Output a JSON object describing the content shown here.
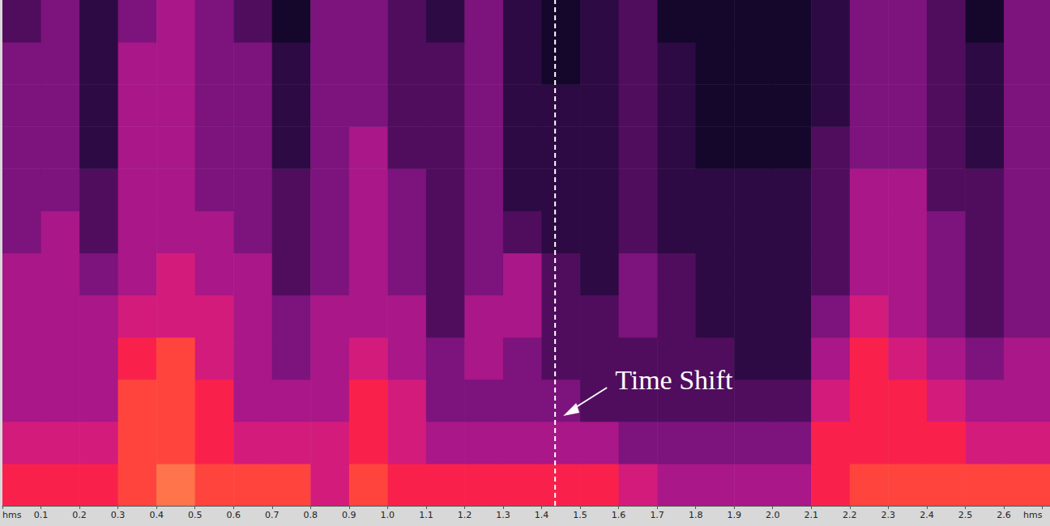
{
  "chart_data": {
    "type": "heatmap",
    "x_bins": [
      0,
      0.1,
      0.2,
      0.3,
      0.4,
      0.5,
      0.6,
      0.7,
      0.8,
      0.9,
      1.0,
      1.1,
      1.2,
      1.3,
      1.4,
      1.5,
      1.6,
      1.7,
      1.8,
      1.9,
      2.0,
      2.1,
      2.2,
      2.3,
      2.4,
      2.5,
      2.6,
      2.72
    ],
    "y_bins": [
      0,
      1,
      2,
      3,
      4,
      5,
      6,
      7,
      8,
      9,
      10,
      11,
      12
    ],
    "cells": [
      [
        7,
        7,
        7,
        8,
        9,
        8,
        8,
        8,
        6,
        8,
        7,
        7,
        7,
        7,
        7,
        7,
        6,
        5,
        5,
        5,
        5,
        7,
        8,
        8,
        8,
        8,
        8
      ],
      [
        6,
        6,
        6,
        8,
        8,
        7,
        6,
        6,
        6,
        7,
        6,
        5,
        5,
        5,
        5,
        5,
        4,
        4,
        4,
        4,
        4,
        7,
        7,
        7,
        7,
        6,
        6
      ],
      [
        5,
        5,
        5,
        8,
        8,
        7,
        5,
        5,
        5,
        7,
        6,
        4,
        4,
        4,
        4,
        3,
        3,
        3,
        3,
        3,
        3,
        6,
        7,
        7,
        6,
        5,
        5
      ],
      [
        5,
        5,
        5,
        7,
        8,
        6,
        5,
        4,
        5,
        6,
        5,
        4,
        5,
        4,
        3,
        3,
        3,
        3,
        3,
        2,
        2,
        5,
        7,
        6,
        5,
        4,
        5
      ],
      [
        5,
        5,
        5,
        6,
        6,
        6,
        5,
        4,
        5,
        5,
        5,
        3,
        5,
        5,
        3,
        3,
        4,
        3,
        2,
        2,
        2,
        4,
        6,
        5,
        4,
        3,
        4
      ],
      [
        5,
        5,
        4,
        5,
        6,
        5,
        5,
        3,
        4,
        5,
        4,
        3,
        4,
        5,
        3,
        2,
        4,
        3,
        2,
        2,
        2,
        3,
        5,
        5,
        4,
        3,
        4
      ],
      [
        4,
        5,
        3,
        5,
        5,
        5,
        4,
        3,
        4,
        5,
        4,
        3,
        4,
        3,
        2,
        2,
        3,
        2,
        2,
        2,
        2,
        3,
        5,
        5,
        4,
        3,
        4
      ],
      [
        4,
        4,
        3,
        5,
        5,
        4,
        4,
        3,
        4,
        5,
        4,
        3,
        4,
        2,
        2,
        2,
        3,
        2,
        2,
        2,
        2,
        3,
        5,
        5,
        3,
        3,
        4
      ],
      [
        4,
        4,
        2,
        5,
        5,
        4,
        4,
        2,
        4,
        5,
        3,
        3,
        4,
        2,
        2,
        2,
        3,
        2,
        1,
        1,
        1,
        3,
        4,
        4,
        3,
        2,
        4
      ],
      [
        4,
        4,
        2,
        5,
        5,
        4,
        4,
        2,
        4,
        4,
        3,
        3,
        4,
        2,
        2,
        2,
        3,
        2,
        1,
        1,
        1,
        2,
        4,
        4,
        3,
        2,
        4
      ],
      [
        4,
        4,
        2,
        5,
        5,
        4,
        4,
        2,
        4,
        4,
        3,
        3,
        4,
        2,
        1,
        2,
        3,
        2,
        1,
        1,
        1,
        2,
        4,
        4,
        3,
        2,
        4
      ],
      [
        3,
        4,
        2,
        4,
        5,
        4,
        3,
        1,
        4,
        4,
        3,
        2,
        4,
        2,
        1,
        2,
        3,
        1,
        1,
        1,
        1,
        2,
        4,
        4,
        3,
        1,
        4
      ]
    ],
    "value_range": [
      0,
      10
    ],
    "xlim": [
      0,
      2.72
    ],
    "ylim": [
      0,
      12
    ],
    "xticks": [
      {
        "value": 0,
        "label": "hms"
      },
      0.1,
      0.2,
      0.3,
      0.4,
      0.5,
      0.6,
      0.7,
      0.8,
      0.9,
      {
        "value": 1,
        "label": "1.0"
      },
      1.1,
      1.2,
      1.3,
      1.4,
      1.5,
      1.6,
      1.7,
      1.8,
      1.9,
      {
        "value": 2,
        "label": "2.0"
      },
      2.1,
      2.2,
      2.3,
      2.4,
      2.5,
      2.6,
      {
        "value": 2.7,
        "label": "hms"
      }
    ],
    "tick_labels": "x",
    "annotations": [
      {
        "text": "Time Shift",
        "x": 1.435
      }
    ]
  }
}
